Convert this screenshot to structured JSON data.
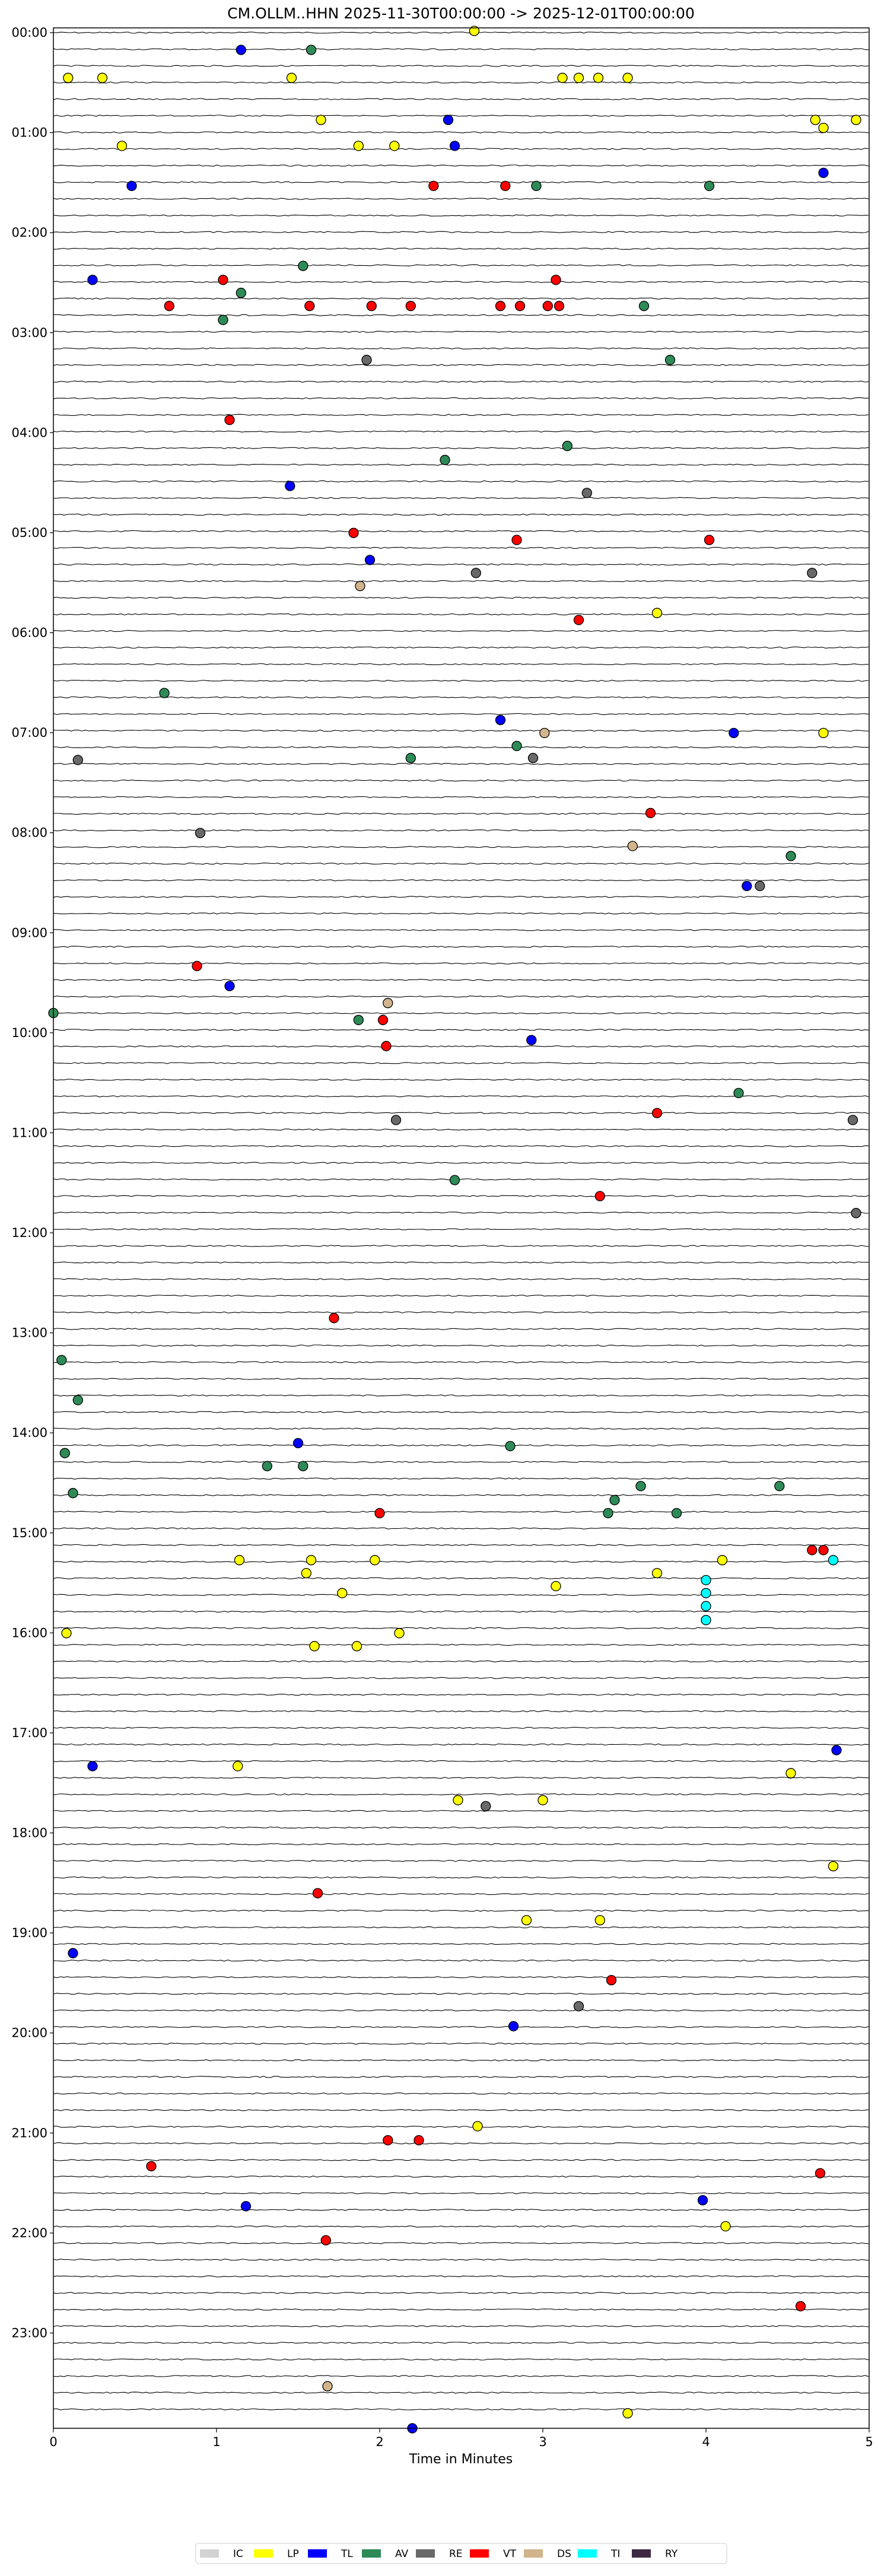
{
  "chart_data": {
    "type": "scatter",
    "title": "CM.OLLM..HHN  2025-11-30T00:00:00 -> 2025-12-01T00:00:00",
    "xlabel": "Time in Minutes",
    "ylabel": "",
    "xlim": [
      0,
      5
    ],
    "x_ticks": [
      "0",
      "1",
      "2",
      "3",
      "4",
      "5"
    ],
    "ylim_hours": [
      0,
      24
    ],
    "y_ticks": [
      "00:00",
      "01:00",
      "02:00",
      "03:00",
      "04:00",
      "05:00",
      "06:00",
      "07:00",
      "08:00",
      "09:00",
      "10:00",
      "11:00",
      "12:00",
      "13:00",
      "14:00",
      "15:00",
      "16:00",
      "17:00",
      "18:00",
      "19:00",
      "20:00",
      "21:00",
      "22:00",
      "23:00"
    ],
    "legend_placement": "bottom-center",
    "legend": [
      {
        "label": "IC",
        "color": "#d3d3d3"
      },
      {
        "label": "LP",
        "color": "#ffff00"
      },
      {
        "label": "TL",
        "color": "#0000ff"
      },
      {
        "label": "AV",
        "color": "#2e8b57"
      },
      {
        "label": "RE",
        "color": "#696969"
      },
      {
        "label": "VT",
        "color": "#ff0000"
      },
      {
        "label": "DS",
        "color": "#d2b48c"
      },
      {
        "label": "TI",
        "color": "#00ffff"
      },
      {
        "label": "RY",
        "color": "#3f2a44"
      }
    ],
    "unclassified_marker_color": "#ffffff",
    "events": [
      {
        "t": 0.03,
        "x": 2.58,
        "c": "LP"
      },
      {
        "t": 0.22,
        "x": 1.15,
        "c": "TL"
      },
      {
        "t": 0.22,
        "x": 1.58,
        "c": "AV"
      },
      {
        "t": 0.5,
        "x": 0.09,
        "c": "LP"
      },
      {
        "t": 0.5,
        "x": 0.3,
        "c": "LP"
      },
      {
        "t": 0.5,
        "x": 1.46,
        "c": "LP"
      },
      {
        "t": 0.5,
        "x": 3.12,
        "c": "LP"
      },
      {
        "t": 0.5,
        "x": 3.22,
        "c": "LP"
      },
      {
        "t": 0.5,
        "x": 3.34,
        "c": "LP"
      },
      {
        "t": 0.5,
        "x": 3.52,
        "c": "LP"
      },
      {
        "t": 0.92,
        "x": 2.42,
        "c": "TL"
      },
      {
        "t": 0.92,
        "x": 1.64,
        "c": "LP"
      },
      {
        "t": 0.92,
        "x": 4.67,
        "c": "LP"
      },
      {
        "t": 0.92,
        "x": 4.92,
        "c": "LP"
      },
      {
        "t": 1.0,
        "x": 4.72,
        "c": "LP"
      },
      {
        "t": 1.18,
        "x": 2.46,
        "c": "TL"
      },
      {
        "t": 1.18,
        "x": 1.87,
        "c": "LP"
      },
      {
        "t": 1.18,
        "x": 2.09,
        "c": "LP"
      },
      {
        "t": 1.18,
        "x": 0.42,
        "c": "LP"
      },
      {
        "t": 1.45,
        "x": 4.72,
        "c": "TL"
      },
      {
        "t": 1.58,
        "x": 0.48,
        "c": "TL"
      },
      {
        "t": 1.58,
        "x": 2.33,
        "c": "VT"
      },
      {
        "t": 1.58,
        "x": 2.77,
        "c": "VT"
      },
      {
        "t": 1.58,
        "x": 2.96,
        "c": "AV"
      },
      {
        "t": 1.58,
        "x": 4.02,
        "c": "AV"
      },
      {
        "t": 2.38,
        "x": 1.53,
        "c": "AV"
      },
      {
        "t": 2.52,
        "x": 0.24,
        "c": "TL"
      },
      {
        "t": 2.52,
        "x": 1.04,
        "c": "VT"
      },
      {
        "t": 2.52,
        "x": 3.08,
        "c": "VT"
      },
      {
        "t": 2.65,
        "x": 1.15,
        "c": "AV"
      },
      {
        "t": 2.78,
        "x": 0.71,
        "c": "VT"
      },
      {
        "t": 2.78,
        "x": 1.57,
        "c": "VT"
      },
      {
        "t": 2.78,
        "x": 1.95,
        "c": "VT"
      },
      {
        "t": 2.78,
        "x": 2.19,
        "c": "VT"
      },
      {
        "t": 2.78,
        "x": 2.74,
        "c": "VT"
      },
      {
        "t": 2.78,
        "x": 2.86,
        "c": "VT"
      },
      {
        "t": 2.78,
        "x": 3.03,
        "c": "VT"
      },
      {
        "t": 2.78,
        "x": 3.1,
        "c": "VT"
      },
      {
        "t": 2.78,
        "x": 3.62,
        "c": "AV"
      },
      {
        "t": 2.92,
        "x": 1.04,
        "c": "AV"
      },
      {
        "t": 3.32,
        "x": 3.78,
        "c": "AV"
      },
      {
        "t": 3.32,
        "x": 1.92,
        "c": "RE"
      },
      {
        "t": 3.92,
        "x": 1.08,
        "c": "VT"
      },
      {
        "t": 4.18,
        "x": 3.15,
        "c": "AV"
      },
      {
        "t": 4.32,
        "x": 2.4,
        "c": "AV"
      },
      {
        "t": 4.58,
        "x": 1.45,
        "c": "TL"
      },
      {
        "t": 4.65,
        "x": 3.27,
        "c": "RE"
      },
      {
        "t": 5.05,
        "x": 1.84,
        "c": "VT"
      },
      {
        "t": 5.12,
        "x": 2.84,
        "c": "VT"
      },
      {
        "t": 5.12,
        "x": 4.02,
        "c": "VT"
      },
      {
        "t": 5.32,
        "x": 1.94,
        "c": "TL"
      },
      {
        "t": 5.45,
        "x": 2.59,
        "c": "RE"
      },
      {
        "t": 5.45,
        "x": 4.65,
        "c": "RE"
      },
      {
        "t": 5.58,
        "x": 1.88,
        "c": "DS"
      },
      {
        "t": 5.92,
        "x": 3.22,
        "c": "VT"
      },
      {
        "t": 5.85,
        "x": 3.7,
        "c": "LP"
      },
      {
        "t": 6.65,
        "x": 0.68,
        "c": "AV"
      },
      {
        "t": 6.92,
        "x": 2.74,
        "c": "TL"
      },
      {
        "t": 7.05,
        "x": 3.01,
        "c": "DS"
      },
      {
        "t": 7.05,
        "x": 4.17,
        "c": "TL"
      },
      {
        "t": 7.05,
        "x": 4.72,
        "c": "LP"
      },
      {
        "t": 7.18,
        "x": 2.84,
        "c": "AV"
      },
      {
        "t": 7.3,
        "x": 2.19,
        "c": "AV"
      },
      {
        "t": 7.3,
        "x": 2.94,
        "c": "RE"
      },
      {
        "t": 7.32,
        "x": 0.15,
        "c": "RE"
      },
      {
        "t": 7.85,
        "x": 3.66,
        "c": "VT"
      },
      {
        "t": 8.18,
        "x": 3.55,
        "c": "DS"
      },
      {
        "t": 8.05,
        "x": 0.9,
        "c": "RE"
      },
      {
        "t": 8.28,
        "x": 4.52,
        "c": "AV"
      },
      {
        "t": 8.58,
        "x": 4.25,
        "c": "TL"
      },
      {
        "t": 8.58,
        "x": 4.33,
        "c": "RE"
      },
      {
        "t": 9.38,
        "x": 0.88,
        "c": "VT"
      },
      {
        "t": 9.58,
        "x": 1.08,
        "c": "TL"
      },
      {
        "t": 9.75,
        "x": 2.05,
        "c": "DS"
      },
      {
        "t": 9.85,
        "x": 0.0,
        "c": "AV"
      },
      {
        "t": 9.92,
        "x": 1.87,
        "c": "AV"
      },
      {
        "t": 9.92,
        "x": 2.02,
        "c": "VT"
      },
      {
        "t": 10.12,
        "x": 2.93,
        "c": "TL"
      },
      {
        "t": 10.18,
        "x": 2.04,
        "c": "VT"
      },
      {
        "t": 10.65,
        "x": 4.2,
        "c": "AV"
      },
      {
        "t": 10.92,
        "x": 2.1,
        "c": "RE"
      },
      {
        "t": 10.85,
        "x": 3.7,
        "c": "VT"
      },
      {
        "t": 10.92,
        "x": 4.9,
        "c": "RE"
      },
      {
        "t": 11.52,
        "x": 2.46,
        "c": "AV"
      },
      {
        "t": 11.68,
        "x": 3.35,
        "c": "VT"
      },
      {
        "t": 11.85,
        "x": 4.92,
        "c": "RE"
      },
      {
        "t": 12.9,
        "x": 1.72,
        "c": "VT"
      },
      {
        "t": 13.32,
        "x": 0.05,
        "c": "AV"
      },
      {
        "t": 13.72,
        "x": 0.15,
        "c": "AV"
      },
      {
        "t": 14.15,
        "x": 1.5,
        "c": "TL"
      },
      {
        "t": 14.18,
        "x": 2.8,
        "c": "AV"
      },
      {
        "t": 14.25,
        "x": 0.07,
        "c": "AV"
      },
      {
        "t": 14.38,
        "x": 1.31,
        "c": "AV"
      },
      {
        "t": 14.38,
        "x": 1.53,
        "c": "AV"
      },
      {
        "t": 14.58,
        "x": 3.6,
        "c": "AV"
      },
      {
        "t": 14.58,
        "x": 4.45,
        "c": "AV"
      },
      {
        "t": 14.65,
        "x": 0.12,
        "c": "AV"
      },
      {
        "t": 14.72,
        "x": 3.44,
        "c": "AV"
      },
      {
        "t": 14.85,
        "x": 2.0,
        "c": "VT"
      },
      {
        "t": 14.85,
        "x": 3.4,
        "c": "AV"
      },
      {
        "t": 14.85,
        "x": 3.82,
        "c": "AV"
      },
      {
        "t": 15.22,
        "x": 4.65,
        "c": "VT"
      },
      {
        "t": 15.22,
        "x": 4.72,
        "c": "VT"
      },
      {
        "t": 15.32,
        "x": 1.14,
        "c": "LP"
      },
      {
        "t": 15.32,
        "x": 1.58,
        "c": "LP"
      },
      {
        "t": 15.32,
        "x": 1.97,
        "c": "LP"
      },
      {
        "t": 15.32,
        "x": 4.1,
        "c": "LP"
      },
      {
        "t": 15.32,
        "x": 4.78,
        "c": "TI"
      },
      {
        "t": 15.45,
        "x": 1.55,
        "c": "LP"
      },
      {
        "t": 15.45,
        "x": 3.7,
        "c": "LP"
      },
      {
        "t": 15.52,
        "x": 4.0,
        "c": "TI"
      },
      {
        "t": 15.58,
        "x": 3.08,
        "c": "LP"
      },
      {
        "t": 15.65,
        "x": 1.77,
        "c": "LP"
      },
      {
        "t": 15.65,
        "x": 4.0,
        "c": "TI"
      },
      {
        "t": 15.78,
        "x": 4.0,
        "c": "TI"
      },
      {
        "t": 15.92,
        "x": 4.0,
        "c": "TI"
      },
      {
        "t": 16.05,
        "x": 0.08,
        "c": "LP"
      },
      {
        "t": 16.05,
        "x": 2.12,
        "c": "LP"
      },
      {
        "t": 16.18,
        "x": 1.6,
        "c": "LP"
      },
      {
        "t": 16.18,
        "x": 1.86,
        "c": "LP"
      },
      {
        "t": 17.38,
        "x": 0.24,
        "c": "TL"
      },
      {
        "t": 17.38,
        "x": 1.13,
        "c": "LP"
      },
      {
        "t": 17.22,
        "x": 4.8,
        "c": "TL"
      },
      {
        "t": 17.45,
        "x": 4.52,
        "c": "LP"
      },
      {
        "t": 17.72,
        "x": 2.48,
        "c": "LP"
      },
      {
        "t": 17.72,
        "x": 3.0,
        "c": "LP"
      },
      {
        "t": 17.78,
        "x": 2.65,
        "c": "RE"
      },
      {
        "t": 18.38,
        "x": 4.78,
        "c": "LP"
      },
      {
        "t": 18.65,
        "x": 1.62,
        "c": "VT"
      },
      {
        "t": 18.92,
        "x": 2.9,
        "c": "LP"
      },
      {
        "t": 18.92,
        "x": 3.35,
        "c": "LP"
      },
      {
        "t": 19.25,
        "x": 0.12,
        "c": "TL"
      },
      {
        "t": 19.52,
        "x": 3.42,
        "c": "VT"
      },
      {
        "t": 19.78,
        "x": 3.22,
        "c": "RE"
      },
      {
        "t": 19.98,
        "x": 2.82,
        "c": "TL"
      },
      {
        "t": 20.98,
        "x": 2.6,
        "c": "LP"
      },
      {
        "t": 21.12,
        "x": 2.05,
        "c": "VT"
      },
      {
        "t": 21.12,
        "x": 2.24,
        "c": "VT"
      },
      {
        "t": 21.45,
        "x": 4.7,
        "c": "VT"
      },
      {
        "t": 21.38,
        "x": 0.6,
        "c": "VT"
      },
      {
        "t": 21.78,
        "x": 1.18,
        "c": "TL"
      },
      {
        "t": 21.72,
        "x": 3.98,
        "c": "TL"
      },
      {
        "t": 21.98,
        "x": 4.12,
        "c": "LP"
      },
      {
        "t": 22.12,
        "x": 1.67,
        "c": "VT"
      },
      {
        "t": 22.78,
        "x": 4.58,
        "c": "VT"
      },
      {
        "t": 23.58,
        "x": 1.68,
        "c": "DS"
      },
      {
        "t": 23.85,
        "x": 3.52,
        "c": "LP"
      },
      {
        "t": 24.0,
        "x": 2.2,
        "c": "TL"
      }
    ]
  }
}
